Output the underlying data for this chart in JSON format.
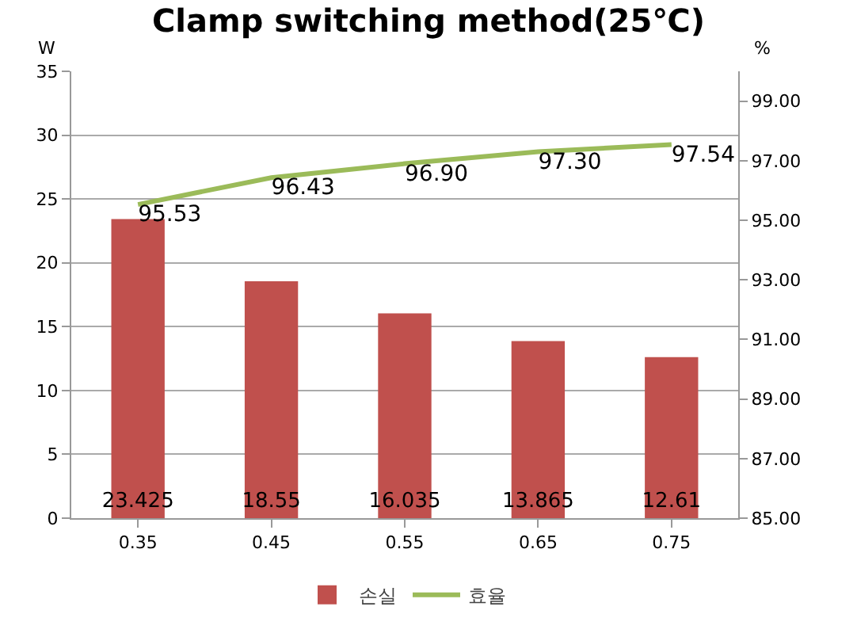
{
  "chart_data": {
    "type": "bar",
    "title": "Clamp switching method(25℃)",
    "ylabel": "W",
    "y2label": "%",
    "categories": [
      "0.35",
      "0.45",
      "0.55",
      "0.65",
      "0.75"
    ],
    "series": [
      {
        "name": "손실",
        "color": "#c0504d",
        "values": [
          23.425,
          18.55,
          16.035,
          13.865,
          12.61
        ]
      },
      {
        "name": "효율",
        "type": "line",
        "axis": "y2",
        "color": "#9bbb59",
        "values": [
          95.53,
          96.43,
          96.9,
          97.3,
          97.54
        ],
        "value_labels": [
          "95.53",
          "96.43",
          "96.90",
          "97.30",
          "97.54"
        ]
      }
    ],
    "data_labels": true,
    "ylim": [
      0,
      35
    ],
    "yticks": [
      0,
      5,
      10,
      15,
      20,
      25,
      30,
      35
    ],
    "y2lim": [
      85,
      100
    ],
    "y2ticks": [
      {
        "value": 85,
        "label": "85.00"
      },
      {
        "value": 87,
        "label": "87.00"
      },
      {
        "value": 89,
        "label": "89.00"
      },
      {
        "value": 91,
        "label": "91.00"
      },
      {
        "value": 93,
        "label": "93.00"
      },
      {
        "value": 95,
        "label": "95.00"
      },
      {
        "value": 97,
        "label": "97.00"
      },
      {
        "value": 99,
        "label": "99.00"
      }
    ],
    "grid": "y",
    "legend": "bottom",
    "marker": "none",
    "line_style": "solid"
  }
}
